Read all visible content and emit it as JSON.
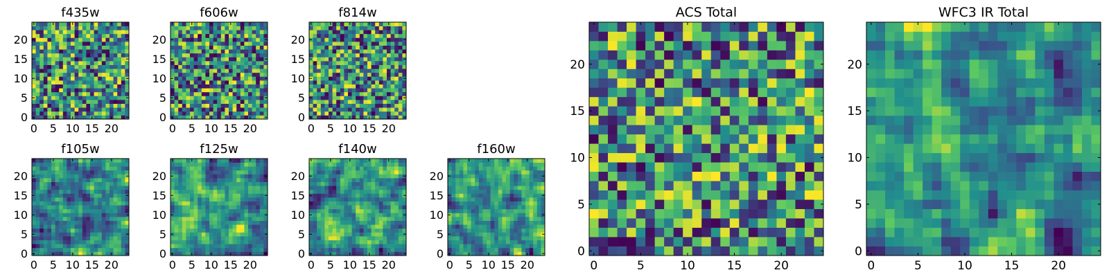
{
  "chart_data": [
    {
      "type": "heatmap",
      "title": "f435w",
      "xticks": [
        "0",
        "5",
        "10",
        "15",
        "20"
      ],
      "yticks": [
        "0",
        "5",
        "10",
        "15",
        "20"
      ],
      "xlim": [
        0,
        25
      ],
      "ylim": [
        0,
        25
      ],
      "rows": 25,
      "cols": 25,
      "seed": 11,
      "smooth": 0,
      "value_range": [
        0,
        1
      ]
    },
    {
      "type": "heatmap",
      "title": "f606w",
      "xticks": [
        "0",
        "5",
        "10",
        "15",
        "20"
      ],
      "yticks": [
        "0",
        "5",
        "10",
        "15",
        "20"
      ],
      "xlim": [
        0,
        25
      ],
      "ylim": [
        0,
        25
      ],
      "rows": 25,
      "cols": 25,
      "seed": 23,
      "smooth": 0,
      "value_range": [
        0,
        1
      ]
    },
    {
      "type": "heatmap",
      "title": "f814w",
      "xticks": [
        "0",
        "5",
        "10",
        "15",
        "20"
      ],
      "yticks": [
        "0",
        "5",
        "10",
        "15",
        "20"
      ],
      "xlim": [
        0,
        25
      ],
      "ylim": [
        0,
        25
      ],
      "rows": 25,
      "cols": 25,
      "seed": 37,
      "smooth": 0,
      "value_range": [
        0,
        1
      ]
    },
    {
      "type": "heatmap",
      "title": "f105w",
      "xticks": [
        "0",
        "5",
        "10",
        "15",
        "20"
      ],
      "yticks": [
        "0",
        "5",
        "10",
        "15",
        "20"
      ],
      "xlim": [
        0,
        25
      ],
      "ylim": [
        0,
        25
      ],
      "rows": 25,
      "cols": 25,
      "seed": 41,
      "smooth": 1,
      "value_range": [
        0,
        1
      ]
    },
    {
      "type": "heatmap",
      "title": "f125w",
      "xticks": [
        "0",
        "5",
        "10",
        "15",
        "20"
      ],
      "yticks": [
        "0",
        "5",
        "10",
        "15",
        "20"
      ],
      "xlim": [
        0,
        25
      ],
      "ylim": [
        0,
        25
      ],
      "rows": 25,
      "cols": 25,
      "seed": 53,
      "smooth": 1,
      "value_range": [
        0,
        1
      ]
    },
    {
      "type": "heatmap",
      "title": "f140w",
      "xticks": [
        "0",
        "5",
        "10",
        "15",
        "20"
      ],
      "yticks": [
        "0",
        "5",
        "10",
        "15",
        "20"
      ],
      "xlim": [
        0,
        25
      ],
      "ylim": [
        0,
        25
      ],
      "rows": 25,
      "cols": 25,
      "seed": 67,
      "smooth": 1,
      "value_range": [
        0,
        1
      ]
    },
    {
      "type": "heatmap",
      "title": "f160w",
      "xticks": [
        "0",
        "5",
        "10",
        "15",
        "20"
      ],
      "yticks": [
        "0",
        "5",
        "10",
        "15",
        "20"
      ],
      "xlim": [
        0,
        25
      ],
      "ylim": [
        0,
        25
      ],
      "rows": 25,
      "cols": 25,
      "seed": 79,
      "smooth": 1,
      "value_range": [
        0,
        1
      ]
    },
    {
      "type": "heatmap",
      "title": "ACS Total",
      "xticks": [
        "0",
        "5",
        "10",
        "15",
        "20"
      ],
      "yticks": [
        "0",
        "5",
        "10",
        "15",
        "20"
      ],
      "xlim": [
        0,
        25
      ],
      "ylim": [
        0,
        25
      ],
      "rows": 25,
      "cols": 25,
      "seed": 97,
      "smooth": 0,
      "value_range": [
        0,
        1
      ]
    },
    {
      "type": "heatmap",
      "title": "WFC3 IR Total",
      "xticks": [
        "0",
        "5",
        "10",
        "15",
        "20"
      ],
      "yticks": [
        "0",
        "5",
        "10",
        "15",
        "20"
      ],
      "xlim": [
        0,
        25
      ],
      "ylim": [
        0,
        25
      ],
      "rows": 25,
      "cols": 25,
      "seed": 131,
      "smooth": 1,
      "value_range": [
        0,
        1
      ]
    }
  ],
  "colormap": [
    "#440154",
    "#3b528b",
    "#21908d",
    "#5dc962",
    "#fde725"
  ],
  "style": {
    "frame": "#000000",
    "background": "#ffffff"
  }
}
